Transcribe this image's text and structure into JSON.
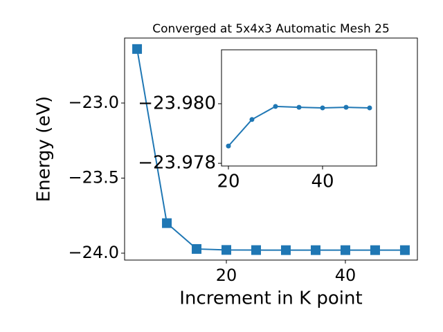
{
  "chart_data": [
    {
      "type": "line",
      "title": "Converged at 5x4x3 Automatic Mesh 25",
      "x_label": "Increment in K point",
      "y_label": "Energy (eV)",
      "x": [
        5,
        10,
        15,
        20,
        25,
        30,
        35,
        40,
        45,
        50
      ],
      "series": [
        {
          "color": "#1f77b4",
          "marker": "square",
          "values": [
            -22.64,
            -23.8,
            -23.972,
            -23.97858,
            -23.97947,
            -23.97991,
            -23.97988,
            -23.97986,
            -23.97988,
            -23.97986
          ]
        }
      ],
      "xlim": [
        2.9,
        52.1
      ],
      "ylim": [
        -24.046,
        -22.567
      ],
      "xticks": [
        20,
        40
      ],
      "yticks": [
        {
          "value": -24.0,
          "label": "−24.0"
        },
        {
          "value": -23.5,
          "label": "−23.5"
        },
        {
          "value": -23.0,
          "label": "−23.0"
        }
      ]
    },
    {
      "type": "line",
      "x": [
        20,
        25,
        30,
        35,
        40,
        45,
        50
      ],
      "series": [
        {
          "color": "#1f77b4",
          "marker": "circle",
          "values": [
            -23.97858,
            -23.97947,
            -23.97991,
            -23.97988,
            -23.97986,
            -23.97988,
            -23.97986
          ]
        }
      ],
      "xlim": [
        18.53,
        51.47
      ],
      "ylim": [
        -23.97791,
        -23.98181
      ],
      "xticks": [
        20,
        40
      ],
      "yticks": [
        {
          "value": -23.978,
          "label": "−23.978"
        },
        {
          "value": -23.98,
          "label": "−23.980"
        }
      ]
    }
  ]
}
